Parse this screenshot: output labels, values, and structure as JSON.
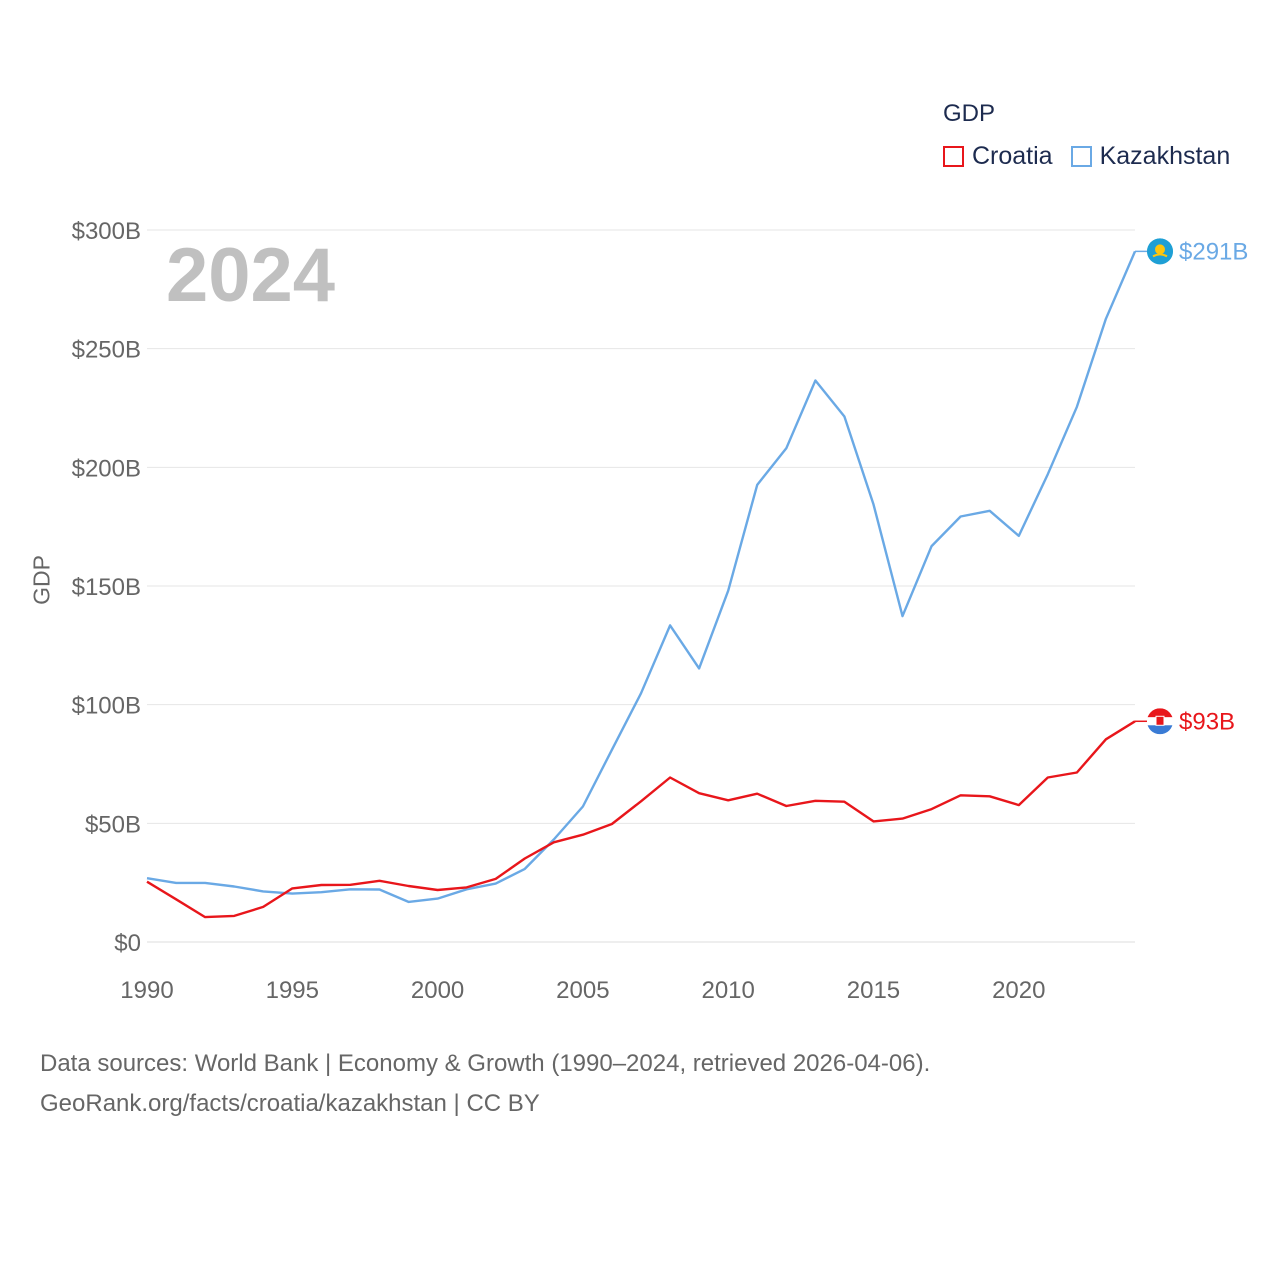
{
  "chart_data": {
    "type": "line",
    "legend_title": "GDP",
    "ylabel": "GDP",
    "xlabel": "",
    "current_year_label": "2024",
    "x": [
      1990,
      1991,
      1992,
      1993,
      1994,
      1995,
      1996,
      1997,
      1998,
      1999,
      2000,
      2001,
      2002,
      2003,
      2004,
      2005,
      2006,
      2007,
      2008,
      2009,
      2010,
      2011,
      2012,
      2013,
      2014,
      2015,
      2016,
      2017,
      2018,
      2019,
      2020,
      2021,
      2022,
      2023,
      2024
    ],
    "ylim": [
      0,
      300
    ],
    "y_unit": "billions USD",
    "y_ticks": [
      {
        "value": 0,
        "label": "$0"
      },
      {
        "value": 50,
        "label": "$50B"
      },
      {
        "value": 100,
        "label": "$100B"
      },
      {
        "value": 150,
        "label": "$150B"
      },
      {
        "value": 200,
        "label": "$200B"
      },
      {
        "value": 250,
        "label": "$250B"
      },
      {
        "value": 300,
        "label": "$300B"
      }
    ],
    "x_ticks": [
      {
        "value": 1990,
        "label": "1990"
      },
      {
        "value": 1995,
        "label": "1995"
      },
      {
        "value": 2000,
        "label": "2000"
      },
      {
        "value": 2005,
        "label": "2005"
      },
      {
        "value": 2010,
        "label": "2010"
      },
      {
        "value": 2015,
        "label": "2015"
      },
      {
        "value": 2020,
        "label": "2020"
      }
    ],
    "series": [
      {
        "name": "Croatia",
        "color": "#e8161b",
        "end_label": "$93B",
        "values": [
          25.4,
          18.0,
          10.5,
          11.0,
          14.8,
          22.6,
          24.0,
          24.1,
          25.8,
          23.6,
          21.9,
          23.0,
          26.6,
          35.2,
          42.0,
          45.2,
          49.7,
          59.3,
          69.3,
          62.7,
          59.7,
          62.5,
          57.3,
          59.5,
          59.1,
          50.8,
          52.0,
          56.0,
          61.8,
          61.4,
          57.7,
          69.3,
          71.4,
          85.4,
          93.0
        ]
      },
      {
        "name": "Kazakhstan",
        "color": "#6aa9e5",
        "end_label": "$291B",
        "values": [
          26.9,
          24.9,
          24.9,
          23.4,
          21.3,
          20.4,
          21.0,
          22.2,
          22.1,
          16.9,
          18.3,
          22.2,
          24.6,
          30.8,
          43.2,
          57.1,
          81.0,
          104.8,
          133.4,
          115.3,
          148.0,
          192.6,
          208.0,
          236.6,
          221.4,
          184.4,
          137.3,
          166.8,
          179.3,
          181.7,
          171.1,
          197.1,
          225.5,
          262.6,
          291.0
        ]
      }
    ]
  },
  "footer": {
    "line1": "Data sources: World Bank | Economy & Growth (1990–2024, retrieved 2026-04-06).",
    "line2": "GeoRank.org/facts/croatia/kazakhstan | CC BY"
  }
}
